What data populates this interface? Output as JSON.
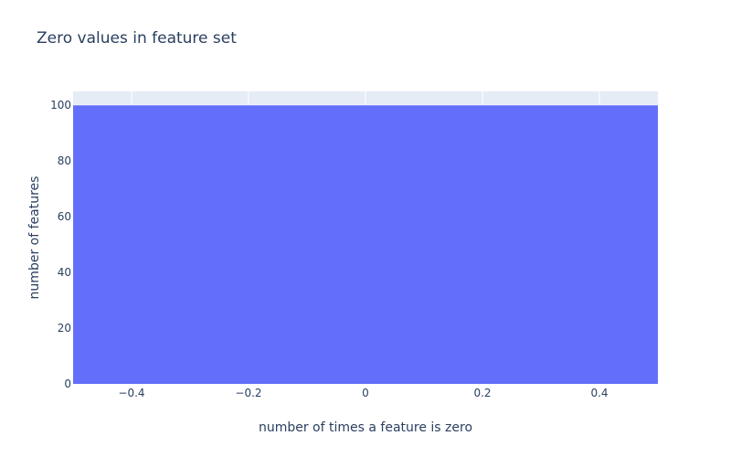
{
  "chart_data": {
    "type": "bar",
    "title": "Zero values in feature set",
    "xlabel": "number of times a feature is zero",
    "ylabel": "number of features",
    "xlim": [
      -0.5,
      0.5
    ],
    "ylim": [
      0,
      105
    ],
    "x_ticks": [
      {
        "value": -0.4,
        "label": "−0.4"
      },
      {
        "value": -0.2,
        "label": "−0.2"
      },
      {
        "value": 0,
        "label": "0"
      },
      {
        "value": 0.2,
        "label": "0.2"
      },
      {
        "value": 0.4,
        "label": "0.4"
      }
    ],
    "y_ticks": [
      {
        "value": 0,
        "label": "0"
      },
      {
        "value": 20,
        "label": "20"
      },
      {
        "value": 40,
        "label": "40"
      },
      {
        "value": 60,
        "label": "60"
      },
      {
        "value": 80,
        "label": "80"
      },
      {
        "value": 100,
        "label": "100"
      }
    ],
    "bars": [
      {
        "x": 0,
        "width": 1,
        "value": 100
      }
    ],
    "bar_color": "#636efa",
    "plot_background": "#e5ecf6",
    "grid": true,
    "grid_color": "#ffffff",
    "legend": false
  }
}
